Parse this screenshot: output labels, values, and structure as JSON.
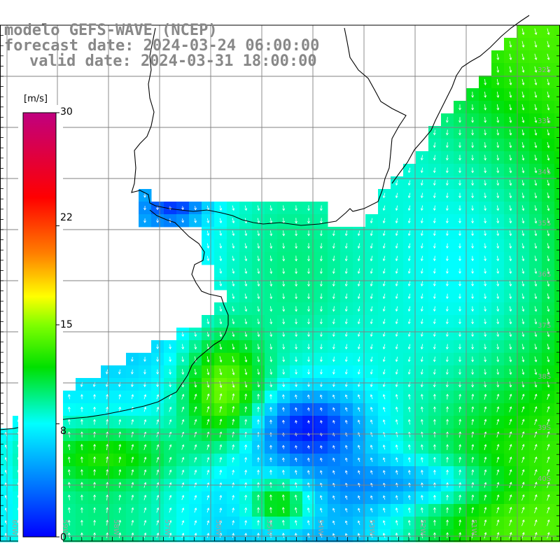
{
  "titles": {
    "line1": "modelo GEFS-WAVE (NCEP)",
    "line2": "forecast date: 2024-03-24 06:00:00",
    "line3": "valid date: 2024-03-31 18:00:00"
  },
  "colorbar": {
    "units": "[m/s]",
    "ticks": [
      "30",
      "22",
      "15",
      "8",
      "0"
    ],
    "tick_values": [
      30,
      22,
      15,
      8,
      0
    ],
    "stops": [
      {
        "value": 0,
        "color": "#0000ff"
      },
      {
        "value": 4,
        "color": "#0080ff"
      },
      {
        "value": 8,
        "color": "#00ffff"
      },
      {
        "value": 12,
        "color": "#00e000"
      },
      {
        "value": 15,
        "color": "#80ff00"
      },
      {
        "value": 17,
        "color": "#ffff00"
      },
      {
        "value": 20,
        "color": "#ff8000"
      },
      {
        "value": 24,
        "color": "#ff0000"
      },
      {
        "value": 30,
        "color": "#c0007f"
      }
    ]
  },
  "latitude_labels": [
    "32S",
    "33S",
    "34S",
    "35S",
    "36S",
    "37S",
    "38S",
    "39S",
    "40S"
  ],
  "longitude_labels": [
    "60W",
    "59W",
    "58W",
    "57W",
    "56W",
    "55W",
    "54W",
    "53W",
    "52W",
    "51W"
  ]
}
